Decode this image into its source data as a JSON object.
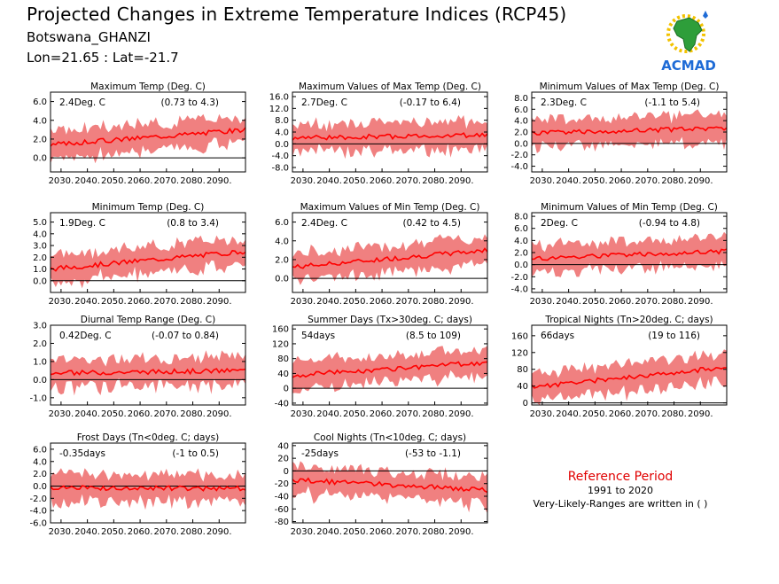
{
  "header": {
    "title": "Projected Changes in Extreme Temperature Indices (RCP45)",
    "location": "Botswana_GHANZI",
    "coords": "Lon=21.65 : Lat=-21.7"
  },
  "logo": {
    "text": "ACMAD",
    "icon": "africa-map-logo"
  },
  "reference": {
    "title": "Reference Period",
    "years": "1991 to 2020",
    "note": "Very-Likely-Ranges are written in ( )"
  },
  "colors": {
    "band": "#f08080",
    "line": "#ff0000",
    "zero": "#000000",
    "ref_title": "#e00000"
  },
  "chart_data": [
    {
      "type": "area",
      "title": "Maximum Temp (Deg. C)",
      "mean_label": "2.4Deg. C",
      "range_label": "(0.73 to 4.3)",
      "x_ticks": [
        "2030.",
        "2040.",
        "2050.",
        "2060.",
        "2070.",
        "2080.",
        "2090."
      ],
      "xlim": [
        2026,
        2100
      ],
      "ylim": [
        -1.5,
        7.0
      ],
      "y_ticks": [
        "0.0",
        "2.0",
        "4.0",
        "6.0"
      ],
      "y_tick_values": [
        0,
        2,
        4,
        6
      ],
      "mean_start": 1.4,
      "mean_end": 3.0,
      "series": [
        {
          "name": "mean",
          "values": []
        },
        {
          "name": "range",
          "values": []
        }
      ]
    },
    {
      "type": "area",
      "title": "Maximum Values of Max Temp (Deg. C)",
      "mean_label": "2.7Deg. C",
      "range_label": "(-0.17 to 6.4)",
      "x_ticks": [
        "2030.",
        "2040.",
        "2050.",
        "2060.",
        "2070.",
        "2080.",
        "2090."
      ],
      "xlim": [
        2026,
        2100
      ],
      "ylim": [
        -9.5,
        17.5
      ],
      "y_ticks": [
        "-8.0",
        "-4.0",
        "0.0",
        "4.0",
        "8.0",
        "12.0",
        "16.0"
      ],
      "y_tick_values": [
        -8,
        -4,
        0,
        4,
        8,
        12,
        16
      ],
      "mean_start": 2.0,
      "mean_end": 3.0
    },
    {
      "type": "area",
      "title": "Minimum Values of Max Temp (Deg. C)",
      "mean_label": "2.3Deg. C",
      "range_label": "(-1.1 to 5.4)",
      "x_ticks": [
        "2030.",
        "2040.",
        "2050.",
        "2060.",
        "2070.",
        "2080.",
        "2090."
      ],
      "xlim": [
        2026,
        2100
      ],
      "ylim": [
        -5.0,
        9.0
      ],
      "y_ticks": [
        "-4.0",
        "-2.0",
        "0.0",
        "2.0",
        "4.0",
        "6.0",
        "8.0"
      ],
      "y_tick_values": [
        -4,
        -2,
        0,
        2,
        4,
        6,
        8
      ],
      "mean_start": 1.8,
      "mean_end": 2.7
    },
    {
      "type": "area",
      "title": "Minimum Temp (Deg. C)",
      "mean_label": "1.9Deg. C",
      "range_label": "(0.8 to 3.4)",
      "x_ticks": [
        "2030.",
        "2040.",
        "2050.",
        "2060.",
        "2070.",
        "2080.",
        "2090."
      ],
      "xlim": [
        2026,
        2100
      ],
      "ylim": [
        -1.0,
        5.8
      ],
      "y_ticks": [
        "0.0",
        "1.0",
        "2.0",
        "3.0",
        "4.0",
        "5.0"
      ],
      "y_tick_values": [
        0,
        1,
        2,
        3,
        4,
        5
      ],
      "mean_start": 1.0,
      "mean_end": 2.5
    },
    {
      "type": "area",
      "title": "Maximum Values of Min Temp (Deg. C)",
      "mean_label": "2.4Deg. C",
      "range_label": "(0.42 to 4.5)",
      "x_ticks": [
        "2030.",
        "2040.",
        "2050.",
        "2060.",
        "2070.",
        "2080.",
        "2090."
      ],
      "xlim": [
        2026,
        2100
      ],
      "ylim": [
        -1.5,
        7.0
      ],
      "y_ticks": [
        "0.0",
        "2.0",
        "4.0",
        "6.0"
      ],
      "y_tick_values": [
        0,
        2,
        4,
        6
      ],
      "mean_start": 1.2,
      "mean_end": 3.0
    },
    {
      "type": "area",
      "title": "Minimum Values of Min Temp (Deg. C)",
      "mean_label": "2Deg. C",
      "range_label": "(-0.94 to 4.8)",
      "x_ticks": [
        "2030.",
        "2040.",
        "2050.",
        "2060.",
        "2070.",
        "2080.",
        "2090."
      ],
      "xlim": [
        2026,
        2100
      ],
      "ylim": [
        -4.6,
        8.6
      ],
      "y_ticks": [
        "-4.0",
        "-2.0",
        "0.0",
        "2.0",
        "4.0",
        "6.0",
        "8.0"
      ],
      "y_tick_values": [
        -4,
        -2,
        0,
        2,
        4,
        6,
        8
      ],
      "mean_start": 1.0,
      "mean_end": 2.2
    },
    {
      "type": "area",
      "title": "Diurnal Temp Range (Deg. C)",
      "mean_label": "0.42Deg. C",
      "range_label": "(-0.07 to 0.84)",
      "x_ticks": [
        "2030.",
        "2040.",
        "2050.",
        "2060.",
        "2070.",
        "2080.",
        "2090."
      ],
      "xlim": [
        2026,
        2100
      ],
      "ylim": [
        -1.4,
        3.0
      ],
      "y_ticks": [
        "-1.0",
        "0.0",
        "1.0",
        "2.0",
        "3.0"
      ],
      "y_tick_values": [
        -1,
        0,
        1,
        2,
        3
      ],
      "mean_start": 0.35,
      "mean_end": 0.5
    },
    {
      "type": "area",
      "title": "Summer Days (Tx>30deg. C; days)",
      "mean_label": "54days",
      "range_label": "(8.5 to 109)",
      "x_ticks": [
        "2030.",
        "2040.",
        "2050.",
        "2060.",
        "2070.",
        "2080.",
        "2090."
      ],
      "xlim": [
        2026,
        2100
      ],
      "ylim": [
        -45,
        170
      ],
      "y_ticks": [
        "-40",
        "0",
        "40",
        "80",
        "120",
        "160"
      ],
      "y_tick_values": [
        -40,
        0,
        40,
        80,
        120,
        160
      ],
      "mean_start": 35,
      "mean_end": 70
    },
    {
      "type": "area",
      "title": "Tropical Nights (Tn>20deg. C; days)",
      "mean_label": "66days",
      "range_label": "(19 to 116)",
      "x_ticks": [
        "2030.",
        "2040.",
        "2050.",
        "2060.",
        "2070.",
        "2080.",
        "2090."
      ],
      "xlim": [
        2026,
        2100
      ],
      "ylim": [
        -5,
        185
      ],
      "y_ticks": [
        "0",
        "40",
        "80",
        "120",
        "160"
      ],
      "y_tick_values": [
        0,
        40,
        80,
        120,
        160
      ],
      "mean_start": 38,
      "mean_end": 85
    },
    {
      "type": "area",
      "title": "Frost Days (Tn<0deg. C; days)",
      "mean_label": "-0.35days",
      "range_label": "(-1 to 0.5)",
      "x_ticks": [
        "2030.",
        "2040.",
        "2050.",
        "2060.",
        "2070.",
        "2080.",
        "2090."
      ],
      "xlim": [
        2026,
        2100
      ],
      "ylim": [
        -6.0,
        7.0
      ],
      "y_ticks": [
        "-6.0",
        "-4.0",
        "-2.0",
        "0.0",
        "2.0",
        "4.0",
        "6.0"
      ],
      "y_tick_values": [
        -6,
        -4,
        -2,
        0,
        2,
        4,
        6
      ],
      "mean_start": -0.3,
      "mean_end": -0.4
    },
    {
      "type": "area",
      "title": "Cool Nights (Tn<10deg. C; days)",
      "mean_label": "-25days",
      "range_label": "(-53 to -1.1)",
      "x_ticks": [
        "2030.",
        "2040.",
        "2050.",
        "2060.",
        "2070.",
        "2080.",
        "2090."
      ],
      "xlim": [
        2026,
        2100
      ],
      "ylim": [
        -82,
        44
      ],
      "y_ticks": [
        "-80",
        "-60",
        "-40",
        "-20",
        "0",
        "20",
        "40"
      ],
      "y_tick_values": [
        -80,
        -60,
        -40,
        -20,
        0,
        20,
        40
      ],
      "mean_start": -14,
      "mean_end": -30
    }
  ]
}
